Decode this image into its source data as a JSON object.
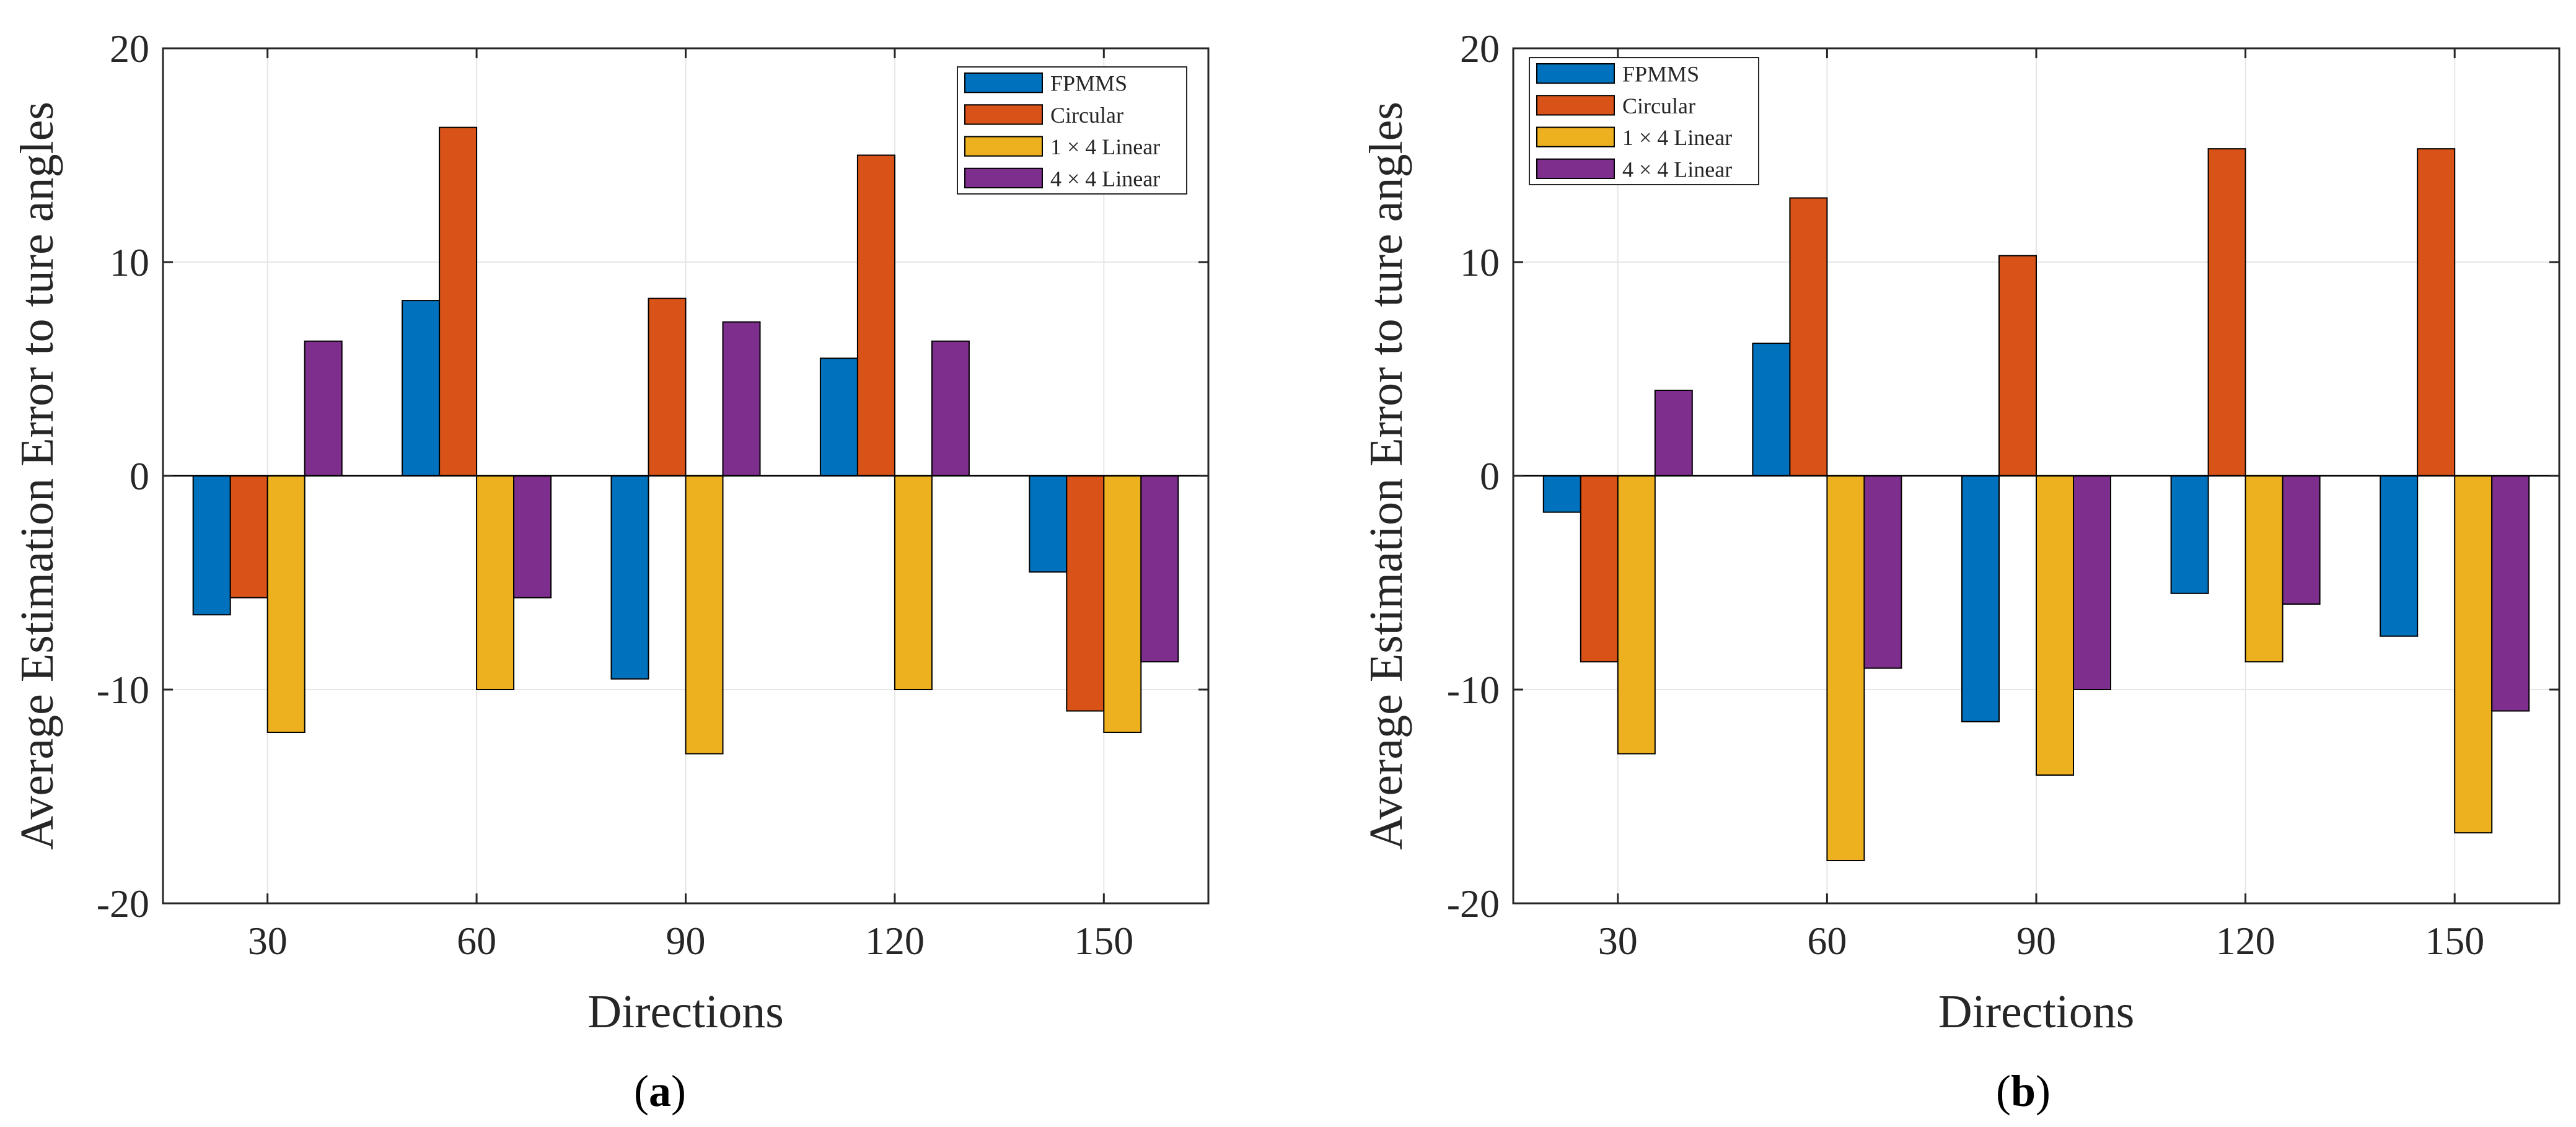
{
  "figure": {
    "captions": [
      "(a)",
      "(b)"
    ],
    "caption_letters": [
      "a",
      "b"
    ]
  },
  "colors": {
    "series": [
      "#0072BD",
      "#D95319",
      "#EDB120",
      "#7E2F8E"
    ],
    "grid": "#e6e6e6",
    "axis": "#262626"
  },
  "chart_data": [
    {
      "type": "bar",
      "title": "",
      "xlabel": "Directions",
      "ylabel": "Average Estimation Error to ture angles",
      "categories": [
        "30",
        "60",
        "90",
        "120",
        "150"
      ],
      "ylim": [
        -20,
        20
      ],
      "yticks": [
        -20,
        -10,
        0,
        10,
        20
      ],
      "ytick_labels": [
        "-20",
        "-10",
        "0",
        "10",
        "20"
      ],
      "grid": true,
      "legend_position": "top-right",
      "series": [
        {
          "name": "FPMMS",
          "values": [
            -6.5,
            8.2,
            -9.5,
            5.5,
            -4.5
          ]
        },
        {
          "name": "Circular",
          "values": [
            -5.7,
            16.3,
            8.3,
            15.0,
            -11.0
          ]
        },
        {
          "name": "1 × 4 Linear",
          "values": [
            -12.0,
            -10.0,
            -13.0,
            -10.0,
            -12.0
          ]
        },
        {
          "name": "4 × 4 Linear",
          "values": [
            6.3,
            -5.7,
            7.2,
            6.3,
            -8.7
          ]
        }
      ]
    },
    {
      "type": "bar",
      "title": "",
      "xlabel": "Directions",
      "ylabel": "Average Estimation Error to ture angles",
      "categories": [
        "30",
        "60",
        "90",
        "120",
        "150"
      ],
      "ylim": [
        -20,
        20
      ],
      "yticks": [
        -20,
        -10,
        0,
        10,
        20
      ],
      "ytick_labels": [
        "-20",
        "-10",
        "0",
        "10",
        "20"
      ],
      "grid": true,
      "legend_position": "top-left",
      "series": [
        {
          "name": "FPMMS",
          "values": [
            -1.7,
            6.2,
            -11.5,
            -5.5,
            -7.5
          ]
        },
        {
          "name": "Circular",
          "values": [
            -8.7,
            13.0,
            10.3,
            15.3,
            15.3
          ]
        },
        {
          "name": "1 × 4 Linear",
          "values": [
            -13.0,
            -18.0,
            -14.0,
            -8.7,
            -16.7
          ]
        },
        {
          "name": "4 × 4 Linear",
          "values": [
            4.0,
            -9.0,
            -10.0,
            -6.0,
            -11.0
          ]
        }
      ]
    }
  ]
}
